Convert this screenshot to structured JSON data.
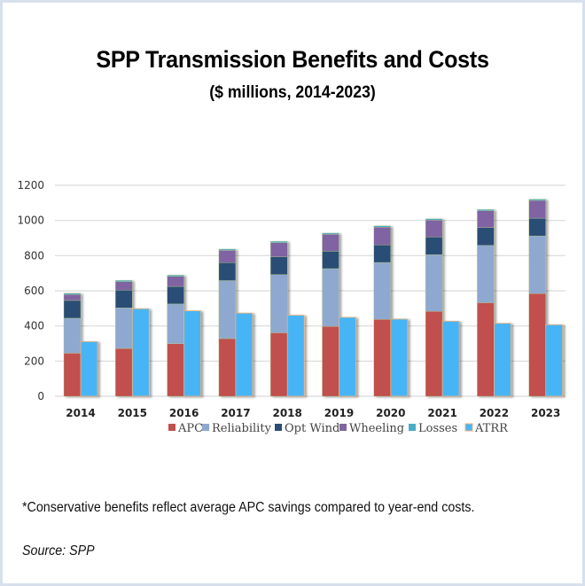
{
  "header": {
    "title": "SPP Transmission Benefits and Costs",
    "subtitle": "($ millions, 2014-2023)"
  },
  "footer": {
    "note": "*Conservative benefits reflect average APC savings compared to year-end costs.",
    "source": "Source: SPP"
  },
  "chart_data": {
    "type": "bar",
    "subtype": "stacked benefits bar beside cost bar",
    "title": "SPP Transmission Benefits and Costs",
    "subtitle": "($ millions, 2014-2023)",
    "xlabel": "",
    "ylabel": "",
    "ylim": [
      0,
      1200
    ],
    "yticks": [
      0,
      200,
      400,
      600,
      800,
      1000,
      1200
    ],
    "grid": true,
    "legend_position": "bottom",
    "categories": [
      "2014",
      "2015",
      "2016",
      "2017",
      "2018",
      "2019",
      "2020",
      "2021",
      "2022",
      "2023"
    ],
    "stacked_series": [
      {
        "name": "APC",
        "color": "#c0504d",
        "values": [
          245,
          272,
          299,
          328,
          361,
          397,
          437,
          483,
          532,
          584
        ]
      },
      {
        "name": "Reliability",
        "color": "#8fa8d0",
        "values": [
          199,
          231,
          226,
          330,
          331,
          329,
          324,
          322,
          326,
          328
        ]
      },
      {
        "name": "Opt Wind",
        "color": "#2c4d75",
        "values": [
          101,
          101,
          100,
          102,
          101,
          99,
          100,
          101,
          101,
          101
        ]
      },
      {
        "name": "Wheeling",
        "color": "#8064a2",
        "values": [
          34,
          48,
          57,
          70,
          81,
          96,
          101,
          96,
          96,
          101
        ]
      },
      {
        "name": "Losses",
        "color": "#4bacc6",
        "values": [
          7,
          7,
          7,
          7,
          7,
          7,
          7,
          7,
          7,
          7
        ]
      }
    ],
    "cost_series": {
      "name": "ATRR",
      "color": "#47b5f5",
      "border": "#f0b27a",
      "values": [
        311,
        498,
        486,
        473,
        461,
        449,
        439,
        427,
        415,
        407
      ]
    },
    "legend": [
      "APC",
      "Reliability",
      "Opt Wind",
      "Wheeling",
      "Losses",
      "ATRR"
    ]
  }
}
